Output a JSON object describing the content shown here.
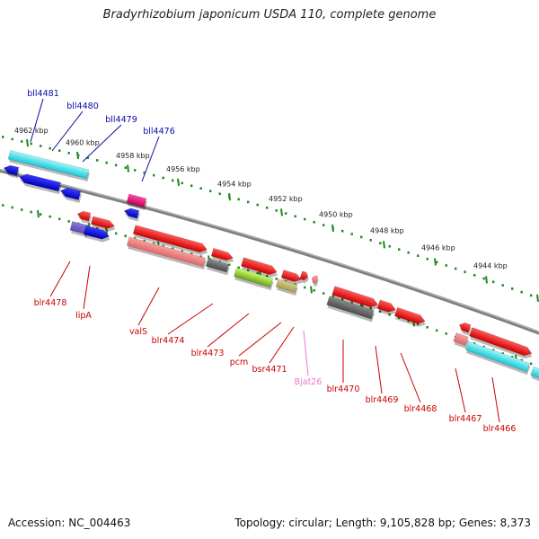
{
  "title": "Bradyrhizobium japonicum USDA 110, complete genome",
  "footer": {
    "accession": "Accession: NC_004463",
    "summary": "Topology: circular; Length: 9,105,828 bp; Genes: 8,373"
  },
  "colors": {
    "backbone": "#7f7f7f",
    "tick_dots": "#1d8a1d",
    "reverse_label": "#0a0aa8",
    "forward_label": "#cc0000",
    "rna_label": "#e878c8"
  },
  "kbp_labels": [
    "4962 kbp",
    "4960 kbp",
    "4958 kbp",
    "4956 kbp",
    "4954 kbp",
    "4952 kbp",
    "4950 kbp",
    "4948 kbp",
    "4946 kbp",
    "4944 kbp"
  ],
  "reverse_genes": [
    {
      "label": "bll4481",
      "icon": "gene-arrow-left"
    },
    {
      "label": "bll4480",
      "icon": "gene-arrow-left"
    },
    {
      "label": "bll4479",
      "icon": "gene-arrow-left"
    },
    {
      "label": "bll4476",
      "icon": "gene-arrow-left"
    }
  ],
  "forward_genes": [
    {
      "label": "blr4478",
      "icon": "gene-arrow-right"
    },
    {
      "label": "lipA",
      "icon": "gene-arrow-right"
    },
    {
      "label": "valS",
      "icon": "gene-arrow-right"
    },
    {
      "label": "blr4474",
      "icon": "gene-arrow-right"
    },
    {
      "label": "blr4473",
      "icon": "gene-arrow-right"
    },
    {
      "label": "pcm",
      "icon": "gene-arrow-right"
    },
    {
      "label": "bsr4471",
      "icon": "gene-arrow-right"
    },
    {
      "label": "Bjat26",
      "icon": "rna-arrow-right"
    },
    {
      "label": "blr4470",
      "icon": "gene-arrow-right"
    },
    {
      "label": "blr4469",
      "icon": "gene-arrow-right"
    },
    {
      "label": "blr4468",
      "icon": "gene-arrow-right"
    },
    {
      "label": "blr4467",
      "icon": "gene-arrow-right"
    },
    {
      "label": "blr4466",
      "icon": "gene-arrow-right"
    }
  ]
}
